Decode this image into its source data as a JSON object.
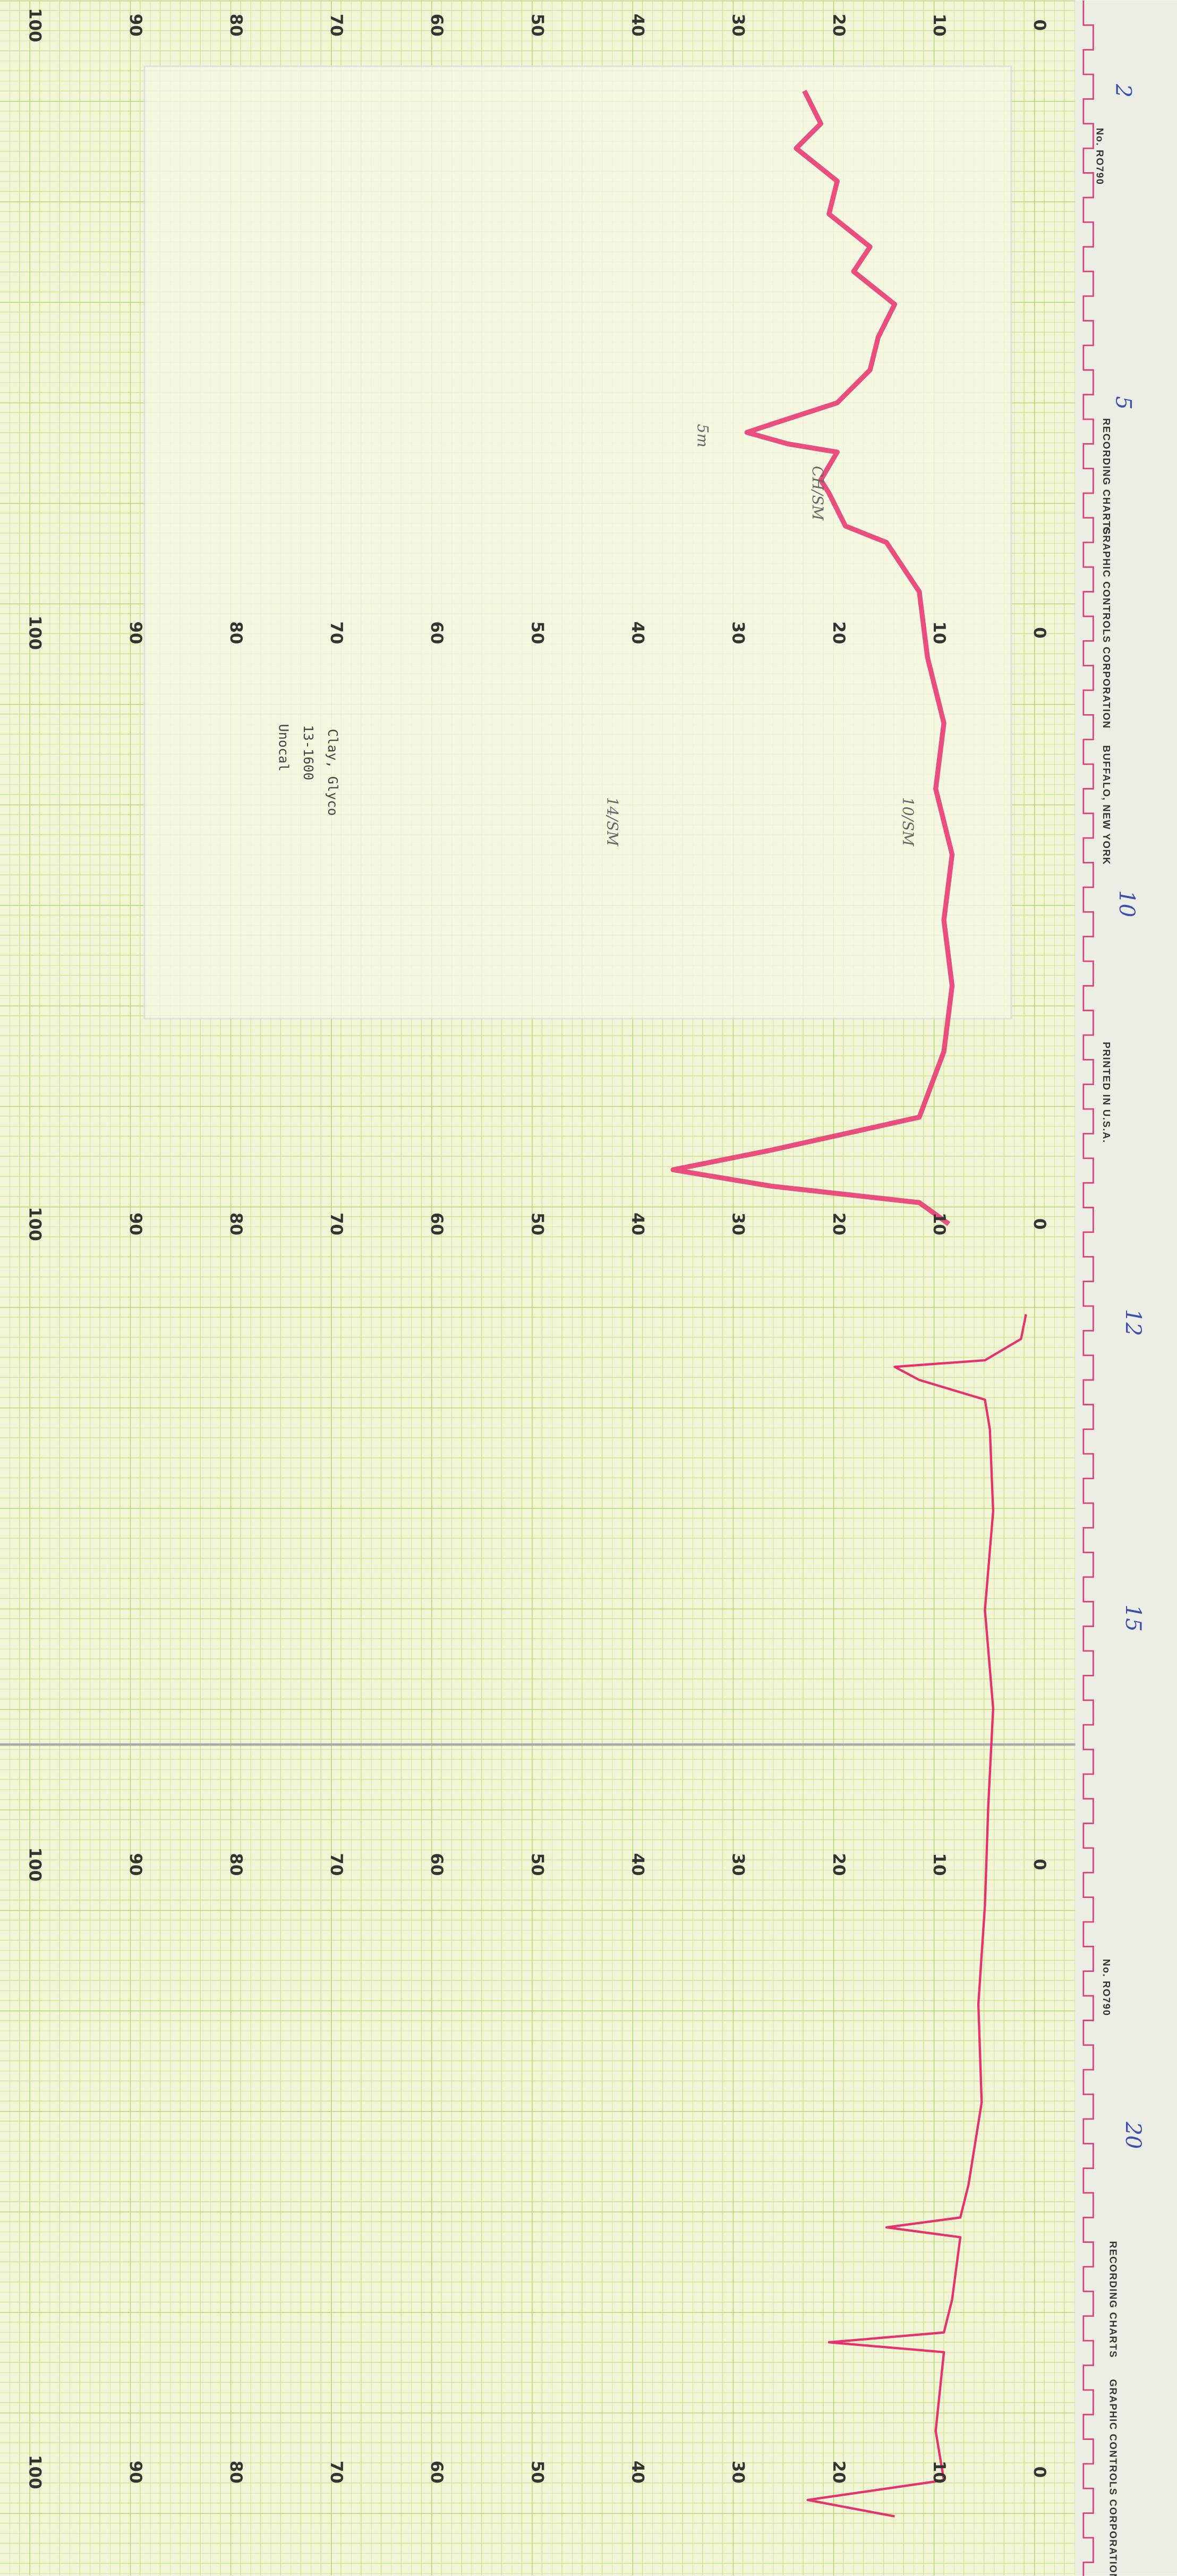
{
  "scale_labels": [
    "100",
    "90",
    "80",
    "70",
    "60",
    "50",
    "40",
    "30",
    "20",
    "10",
    "0"
  ],
  "run_marks": [
    "2",
    "5",
    "10",
    "12",
    "15",
    "20"
  ],
  "chart_number": "No. RO790",
  "brand": "RECORDING CHARTS",
  "company": "GRAPHIC CONTROLS CORPORATION",
  "city": "BUFFALO, NEW YORK",
  "printed": "PRINTED IN U.S.A.",
  "sample_note": [
    "Unocal",
    "13-1600",
    "Clay, Glyco"
  ],
  "annotations": [
    "5m",
    "CH/SM",
    "10/SM",
    "14/SM"
  ]
}
